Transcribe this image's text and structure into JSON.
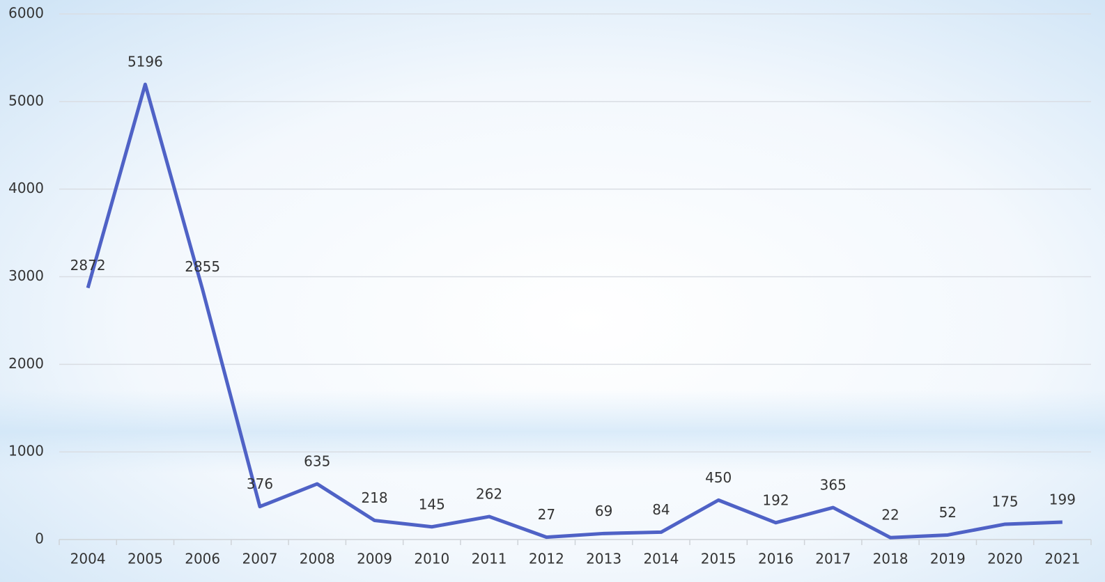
{
  "chart_data": {
    "type": "line",
    "categories": [
      "2004",
      "2005",
      "2006",
      "2007",
      "2008",
      "2009",
      "2010",
      "2011",
      "2012",
      "2013",
      "2014",
      "2015",
      "2016",
      "2017",
      "2018",
      "2019",
      "2020",
      "2021"
    ],
    "values": [
      2872,
      5196,
      2855,
      376,
      635,
      218,
      145,
      262,
      27,
      69,
      84,
      450,
      192,
      365,
      22,
      52,
      175,
      199
    ],
    "color": "#4f62c6",
    "ylim": [
      0,
      6000
    ],
    "yticks": [
      0,
      1000,
      2000,
      3000,
      4000,
      5000,
      6000
    ],
    "grid": true
  }
}
